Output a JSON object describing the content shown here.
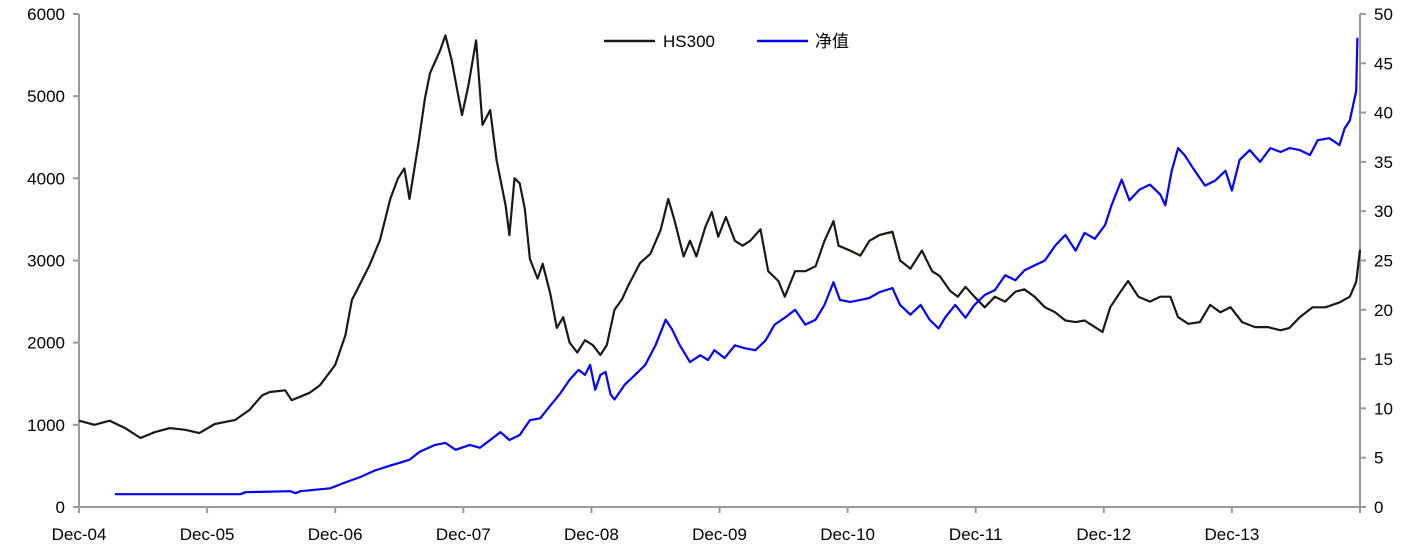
{
  "chart_data": {
    "type": "line",
    "title": "",
    "xlabel": "",
    "x_unit": "years since Dec-04",
    "xlim": [
      0,
      10
    ],
    "x_ticks": [
      {
        "t": 0,
        "label": "Dec-04"
      },
      {
        "t": 1,
        "label": "Dec-05"
      },
      {
        "t": 2,
        "label": "Dec-06"
      },
      {
        "t": 3,
        "label": "Dec-07"
      },
      {
        "t": 4,
        "label": "Dec-08"
      },
      {
        "t": 5,
        "label": "Dec-09"
      },
      {
        "t": 6,
        "label": "Dec-10"
      },
      {
        "t": 7,
        "label": "Dec-11"
      },
      {
        "t": 8,
        "label": "Dec-12"
      },
      {
        "t": 9,
        "label": "Dec-13"
      }
    ],
    "y_left": {
      "lim": [
        0,
        6000
      ],
      "ticks": [
        "0",
        "1000",
        "2000",
        "3000",
        "4000",
        "5000",
        "6000"
      ]
    },
    "y_right": {
      "lim": [
        0,
        50
      ],
      "ticks": [
        "0",
        "5",
        "10",
        "15",
        "20",
        "25",
        "30",
        "35",
        "40",
        "45",
        "50"
      ]
    },
    "grid": false,
    "legend": {
      "placement": "top-center"
    },
    "series": [
      {
        "name": "HS300",
        "axis": "left",
        "color": "#1a1a14",
        "points": [
          [
            0.0,
            1050
          ],
          [
            0.12,
            1000
          ],
          [
            0.24,
            1050
          ],
          [
            0.36,
            960
          ],
          [
            0.48,
            840
          ],
          [
            0.59,
            910
          ],
          [
            0.71,
            960
          ],
          [
            0.83,
            940
          ],
          [
            0.94,
            900
          ],
          [
            1.06,
            1010
          ],
          [
            1.22,
            1060
          ],
          [
            1.33,
            1180
          ],
          [
            1.43,
            1360
          ],
          [
            1.49,
            1400
          ],
          [
            1.61,
            1420
          ],
          [
            1.66,
            1300
          ],
          [
            1.8,
            1390
          ],
          [
            1.88,
            1480
          ],
          [
            2.0,
            1730
          ],
          [
            2.08,
            2090
          ],
          [
            2.13,
            2520
          ],
          [
            2.19,
            2700
          ],
          [
            2.27,
            2950
          ],
          [
            2.35,
            3250
          ],
          [
            2.43,
            3750
          ],
          [
            2.49,
            4000
          ],
          [
            2.54,
            4120
          ],
          [
            2.58,
            3750
          ],
          [
            2.65,
            4430
          ],
          [
            2.7,
            4970
          ],
          [
            2.74,
            5280
          ],
          [
            2.82,
            5560
          ],
          [
            2.86,
            5740
          ],
          [
            2.91,
            5430
          ],
          [
            2.96,
            5010
          ],
          [
            2.99,
            4770
          ],
          [
            3.04,
            5130
          ],
          [
            3.1,
            5680
          ],
          [
            3.15,
            4650
          ],
          [
            3.21,
            4830
          ],
          [
            3.26,
            4220
          ],
          [
            3.33,
            3670
          ],
          [
            3.36,
            3310
          ],
          [
            3.4,
            4000
          ],
          [
            3.44,
            3940
          ],
          [
            3.48,
            3630
          ],
          [
            3.52,
            3020
          ],
          [
            3.58,
            2780
          ],
          [
            3.62,
            2960
          ],
          [
            3.68,
            2590
          ],
          [
            3.73,
            2180
          ],
          [
            3.78,
            2310
          ],
          [
            3.83,
            2000
          ],
          [
            3.89,
            1880
          ],
          [
            3.95,
            2030
          ],
          [
            4.01,
            1970
          ],
          [
            4.07,
            1850
          ],
          [
            4.12,
            1970
          ],
          [
            4.18,
            2400
          ],
          [
            4.24,
            2530
          ],
          [
            4.29,
            2700
          ],
          [
            4.38,
            2970
          ],
          [
            4.46,
            3080
          ],
          [
            4.54,
            3370
          ],
          [
            4.6,
            3750
          ],
          [
            4.65,
            3480
          ],
          [
            4.72,
            3050
          ],
          [
            4.77,
            3240
          ],
          [
            4.82,
            3050
          ],
          [
            4.89,
            3410
          ],
          [
            4.94,
            3590
          ],
          [
            4.99,
            3290
          ],
          [
            5.05,
            3530
          ],
          [
            5.12,
            3240
          ],
          [
            5.18,
            3180
          ],
          [
            5.24,
            3240
          ],
          [
            5.32,
            3380
          ],
          [
            5.38,
            2870
          ],
          [
            5.46,
            2750
          ],
          [
            5.51,
            2560
          ],
          [
            5.59,
            2870
          ],
          [
            5.67,
            2870
          ],
          [
            5.75,
            2930
          ],
          [
            5.82,
            3240
          ],
          [
            5.89,
            3480
          ],
          [
            5.93,
            3180
          ],
          [
            6.02,
            3120
          ],
          [
            6.1,
            3060
          ],
          [
            6.17,
            3240
          ],
          [
            6.25,
            3310
          ],
          [
            6.35,
            3350
          ],
          [
            6.41,
            3000
          ],
          [
            6.49,
            2900
          ],
          [
            6.58,
            3120
          ],
          [
            6.66,
            2870
          ],
          [
            6.72,
            2810
          ],
          [
            6.8,
            2630
          ],
          [
            6.86,
            2560
          ],
          [
            6.92,
            2680
          ],
          [
            6.99,
            2560
          ],
          [
            7.07,
            2430
          ],
          [
            7.15,
            2560
          ],
          [
            7.23,
            2500
          ],
          [
            7.31,
            2620
          ],
          [
            7.38,
            2650
          ],
          [
            7.46,
            2560
          ],
          [
            7.54,
            2430
          ],
          [
            7.62,
            2370
          ],
          [
            7.7,
            2270
          ],
          [
            7.78,
            2250
          ],
          [
            7.85,
            2270
          ],
          [
            7.93,
            2190
          ],
          [
            7.99,
            2130
          ],
          [
            8.05,
            2430
          ],
          [
            8.13,
            2620
          ],
          [
            8.19,
            2750
          ],
          [
            8.27,
            2560
          ],
          [
            8.36,
            2500
          ],
          [
            8.44,
            2560
          ],
          [
            8.52,
            2560
          ],
          [
            8.58,
            2310
          ],
          [
            8.66,
            2230
          ],
          [
            8.75,
            2250
          ],
          [
            8.83,
            2460
          ],
          [
            8.91,
            2370
          ],
          [
            8.99,
            2430
          ],
          [
            9.08,
            2250
          ],
          [
            9.18,
            2190
          ],
          [
            9.28,
            2190
          ],
          [
            9.38,
            2150
          ],
          [
            9.45,
            2180
          ],
          [
            9.53,
            2310
          ],
          [
            9.63,
            2430
          ],
          [
            9.73,
            2430
          ],
          [
            9.84,
            2490
          ],
          [
            9.92,
            2560
          ],
          [
            9.97,
            2740
          ],
          [
            10.0,
            3130
          ]
        ]
      },
      {
        "name": "净值",
        "axis": "right",
        "color": "#0000ff",
        "points": [
          [
            0.28,
            1.3
          ],
          [
            1.26,
            1.3
          ],
          [
            1.3,
            1.5
          ],
          [
            1.65,
            1.6
          ],
          [
            1.69,
            1.4
          ],
          [
            1.73,
            1.6
          ],
          [
            1.96,
            1.9
          ],
          [
            2.08,
            2.5
          ],
          [
            2.19,
            3.0
          ],
          [
            2.31,
            3.7
          ],
          [
            2.43,
            4.2
          ],
          [
            2.51,
            4.5
          ],
          [
            2.58,
            4.8
          ],
          [
            2.66,
            5.6
          ],
          [
            2.78,
            6.3
          ],
          [
            2.86,
            6.5
          ],
          [
            2.94,
            5.8
          ],
          [
            3.05,
            6.3
          ],
          [
            3.13,
            6.0
          ],
          [
            3.21,
            6.8
          ],
          [
            3.29,
            7.6
          ],
          [
            3.36,
            6.8
          ],
          [
            3.44,
            7.3
          ],
          [
            3.52,
            8.8
          ],
          [
            3.6,
            9.0
          ],
          [
            3.68,
            10.3
          ],
          [
            3.75,
            11.4
          ],
          [
            3.83,
            12.9
          ],
          [
            3.9,
            13.9
          ],
          [
            3.95,
            13.4
          ],
          [
            3.99,
            14.4
          ],
          [
            4.03,
            11.9
          ],
          [
            4.07,
            13.4
          ],
          [
            4.11,
            13.7
          ],
          [
            4.15,
            11.4
          ],
          [
            4.18,
            10.9
          ],
          [
            4.26,
            12.4
          ],
          [
            4.34,
            13.4
          ],
          [
            4.42,
            14.4
          ],
          [
            4.5,
            16.4
          ],
          [
            4.58,
            19.0
          ],
          [
            4.63,
            18.0
          ],
          [
            4.69,
            16.4
          ],
          [
            4.77,
            14.7
          ],
          [
            4.85,
            15.4
          ],
          [
            4.91,
            14.9
          ],
          [
            4.96,
            15.9
          ],
          [
            5.04,
            15.1
          ],
          [
            5.12,
            16.4
          ],
          [
            5.2,
            16.1
          ],
          [
            5.28,
            15.9
          ],
          [
            5.36,
            16.9
          ],
          [
            5.43,
            18.5
          ],
          [
            5.51,
            19.2
          ],
          [
            5.59,
            20.0
          ],
          [
            5.67,
            18.5
          ],
          [
            5.75,
            19.0
          ],
          [
            5.82,
            20.5
          ],
          [
            5.89,
            22.8
          ],
          [
            5.94,
            21.0
          ],
          [
            6.02,
            20.8
          ],
          [
            6.1,
            21.0
          ],
          [
            6.17,
            21.2
          ],
          [
            6.25,
            21.8
          ],
          [
            6.35,
            22.2
          ],
          [
            6.41,
            20.5
          ],
          [
            6.49,
            19.5
          ],
          [
            6.57,
            20.5
          ],
          [
            6.64,
            19.0
          ],
          [
            6.71,
            18.1
          ],
          [
            6.76,
            19.2
          ],
          [
            6.84,
            20.5
          ],
          [
            6.92,
            19.2
          ],
          [
            6.99,
            20.5
          ],
          [
            7.07,
            21.5
          ],
          [
            7.15,
            22.0
          ],
          [
            7.23,
            23.5
          ],
          [
            7.31,
            23.0
          ],
          [
            7.38,
            24.0
          ],
          [
            7.46,
            24.5
          ],
          [
            7.54,
            25.0
          ],
          [
            7.62,
            26.5
          ],
          [
            7.7,
            27.6
          ],
          [
            7.78,
            26.0
          ],
          [
            7.85,
            27.8
          ],
          [
            7.93,
            27.2
          ],
          [
            8.01,
            28.6
          ],
          [
            8.06,
            30.6
          ],
          [
            8.14,
            33.2
          ],
          [
            8.2,
            31.1
          ],
          [
            8.28,
            32.2
          ],
          [
            8.36,
            32.7
          ],
          [
            8.44,
            31.7
          ],
          [
            8.48,
            30.6
          ],
          [
            8.53,
            34.1
          ],
          [
            8.58,
            36.4
          ],
          [
            8.63,
            35.7
          ],
          [
            8.71,
            34.1
          ],
          [
            8.79,
            32.6
          ],
          [
            8.87,
            33.1
          ],
          [
            8.95,
            34.1
          ],
          [
            9.0,
            32.1
          ],
          [
            9.06,
            35.2
          ],
          [
            9.14,
            36.2
          ],
          [
            9.22,
            35.0
          ],
          [
            9.3,
            36.4
          ],
          [
            9.38,
            36.0
          ],
          [
            9.45,
            36.4
          ],
          [
            9.53,
            36.2
          ],
          [
            9.61,
            35.7
          ],
          [
            9.67,
            37.2
          ],
          [
            9.76,
            37.4
          ],
          [
            9.84,
            36.7
          ],
          [
            9.88,
            38.4
          ],
          [
            9.92,
            39.2
          ],
          [
            9.97,
            42.2
          ],
          [
            9.98,
            47.6
          ]
        ]
      }
    ]
  }
}
